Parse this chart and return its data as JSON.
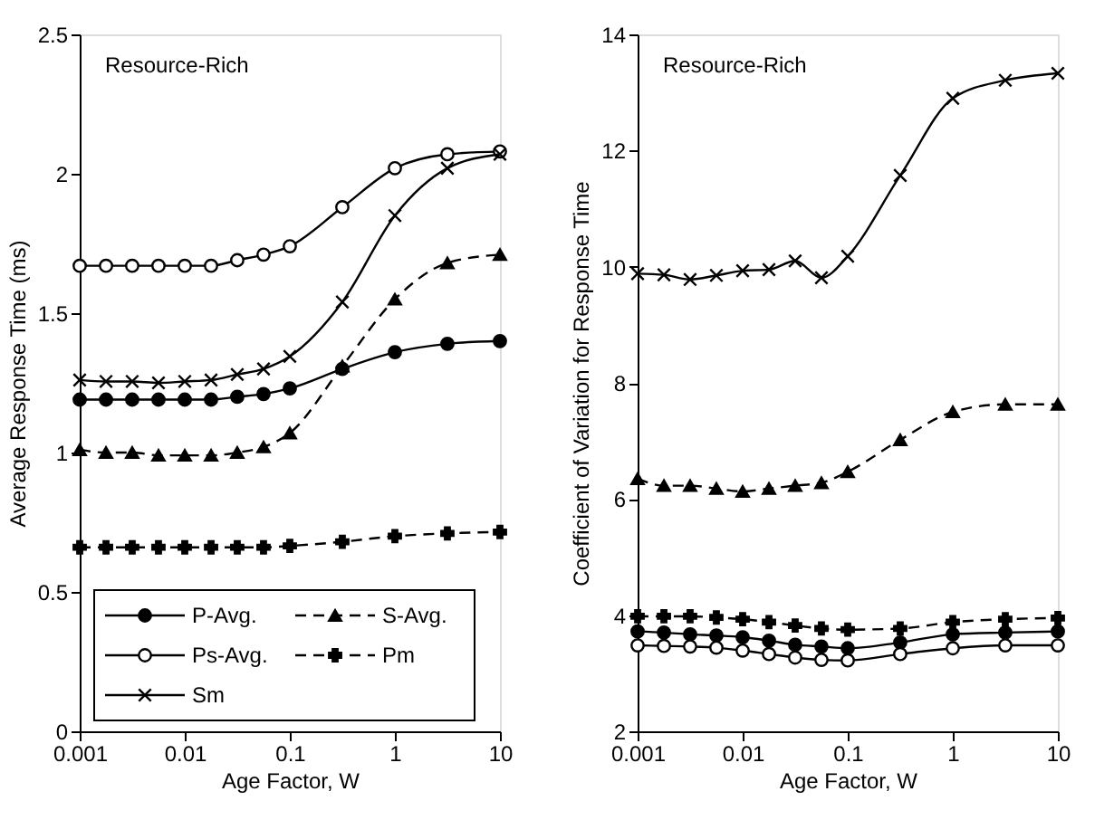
{
  "chart_data": [
    {
      "type": "line",
      "xlabel": "Age Factor, W",
      "ylabel": "Average Response Time (ms)",
      "annotations": [
        "Resource-Rich"
      ],
      "log": "x",
      "grid": false,
      "legend": "bottom left",
      "x": [
        0.001,
        0.00178,
        0.00316,
        0.00562,
        0.01,
        0.0178,
        0.0316,
        0.0562,
        0.1,
        0.316,
        1,
        3.16,
        10
      ],
      "xlim": [
        0.001,
        10
      ],
      "xticks": [
        0.001,
        0.01,
        0.1,
        1,
        10
      ],
      "ylim": [
        0,
        2.5
      ],
      "yticks": [
        0,
        0.5,
        1,
        1.5,
        2,
        2.5
      ],
      "series": [
        {
          "name": "P-Avg.",
          "color": "#000000",
          "marker": "circle",
          "line_style": "solid",
          "values": [
            1.19,
            1.19,
            1.19,
            1.19,
            1.19,
            1.19,
            1.2,
            1.21,
            1.23,
            1.3,
            1.36,
            1.39,
            1.4
          ]
        },
        {
          "name": "S-Avg.",
          "color": "#000000",
          "marker": "triangle",
          "line_style": "dashed",
          "values": [
            1.01,
            1.0,
            1.0,
            0.99,
            0.99,
            0.99,
            1.0,
            1.02,
            1.07,
            1.31,
            1.55,
            1.68,
            1.71
          ]
        },
        {
          "name": "Ps-Avg.",
          "color": "#000000",
          "marker": "circle_open",
          "line_style": "solid",
          "values": [
            1.67,
            1.67,
            1.67,
            1.67,
            1.67,
            1.67,
            1.69,
            1.71,
            1.74,
            1.88,
            2.02,
            2.07,
            2.08
          ]
        },
        {
          "name": "Pm",
          "color": "#000000",
          "marker": "plus",
          "line_style": "dashed",
          "values": [
            0.66,
            0.66,
            0.66,
            0.66,
            0.66,
            0.66,
            0.66,
            0.66,
            0.665,
            0.68,
            0.7,
            0.71,
            0.715
          ]
        },
        {
          "name": "Sm",
          "color": "#000000",
          "marker": "x",
          "line_style": "solid",
          "values": [
            1.26,
            1.255,
            1.255,
            1.25,
            1.255,
            1.26,
            1.28,
            1.3,
            1.345,
            1.54,
            1.85,
            2.02,
            2.07
          ]
        }
      ]
    },
    {
      "type": "line",
      "xlabel": "Age Factor, W",
      "ylabel": "Coefficient of Variation for Response Time",
      "annotations": [
        "Resource-Rich"
      ],
      "log": "x",
      "grid": false,
      "x": [
        0.001,
        0.00178,
        0.00316,
        0.00562,
        0.01,
        0.0178,
        0.0316,
        0.0562,
        0.1,
        0.316,
        1,
        3.16,
        10
      ],
      "xlim": [
        0.001,
        10
      ],
      "xticks": [
        0.001,
        0.01,
        0.1,
        1,
        10
      ],
      "ylim": [
        2,
        14
      ],
      "yticks": [
        2,
        4,
        6,
        8,
        10,
        12,
        14
      ],
      "series": [
        {
          "color": "#000000",
          "marker": "circle",
          "line_style": "solid",
          "values": [
            3.72,
            3.7,
            3.67,
            3.65,
            3.62,
            3.56,
            3.49,
            3.46,
            3.43,
            3.53,
            3.67,
            3.7,
            3.72
          ]
        },
        {
          "color": "#000000",
          "marker": "triangle",
          "line_style": "dashed",
          "values": [
            6.35,
            6.23,
            6.23,
            6.18,
            6.13,
            6.18,
            6.23,
            6.28,
            6.47,
            7.02,
            7.5,
            7.63,
            7.63
          ]
        },
        {
          "color": "#000000",
          "marker": "circle_open",
          "line_style": "solid",
          "values": [
            3.48,
            3.47,
            3.46,
            3.44,
            3.39,
            3.33,
            3.27,
            3.23,
            3.22,
            3.33,
            3.43,
            3.48,
            3.48
          ]
        },
        {
          "color": "#000000",
          "marker": "plus",
          "line_style": "dashed",
          "values": [
            3.98,
            3.98,
            3.98,
            3.96,
            3.93,
            3.88,
            3.82,
            3.77,
            3.75,
            3.77,
            3.88,
            3.93,
            3.95
          ]
        },
        {
          "color": "#000000",
          "marker": "x",
          "line_style": "solid",
          "values": [
            9.88,
            9.86,
            9.78,
            9.85,
            9.93,
            9.95,
            10.1,
            9.81,
            10.18,
            11.57,
            12.9,
            13.21,
            13.33
          ]
        }
      ]
    }
  ]
}
